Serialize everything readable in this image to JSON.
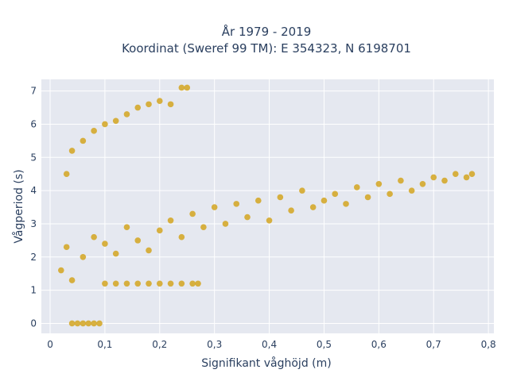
{
  "chart_data": {
    "type": "scatter",
    "title": "År 1979 - 2019",
    "subtitle": "Koordinat (Sweref 99 TM): E 354323, N 6198701",
    "xlabel": "Signifikant våghöjd (m)",
    "ylabel": "Vågperiod (s)",
    "xlim": [
      -0.016,
      0.81
    ],
    "ylim": [
      -0.3,
      7.35
    ],
    "x_ticks": [
      0,
      0.1,
      0.2,
      0.3,
      0.4,
      0.5,
      0.6,
      0.7,
      0.8
    ],
    "x_tick_labels": [
      "0",
      "0,1",
      "0,2",
      "0,3",
      "0,4",
      "0,5",
      "0,6",
      "0,7",
      "0,8"
    ],
    "y_ticks": [
      0,
      1,
      2,
      3,
      4,
      5,
      6,
      7
    ],
    "y_tick_labels": [
      "0",
      "1",
      "2",
      "3",
      "4",
      "5",
      "6",
      "7"
    ],
    "grid": true,
    "legend": "none",
    "background": "#e5e8f0",
    "marker_color": "#d4a420",
    "series": [
      {
        "points": [
          [
            0.04,
            0.0
          ],
          [
            0.05,
            0.0
          ],
          [
            0.06,
            0.0
          ],
          [
            0.07,
            0.0
          ],
          [
            0.08,
            0.0
          ],
          [
            0.09,
            0.0
          ],
          [
            0.1,
            1.2
          ],
          [
            0.12,
            1.2
          ],
          [
            0.14,
            1.2
          ],
          [
            0.16,
            1.2
          ],
          [
            0.18,
            1.2
          ],
          [
            0.2,
            1.2
          ],
          [
            0.22,
            1.2
          ],
          [
            0.24,
            1.2
          ],
          [
            0.26,
            1.2
          ],
          [
            0.27,
            1.2
          ],
          [
            0.02,
            1.6
          ],
          [
            0.03,
            2.3
          ],
          [
            0.04,
            1.3
          ],
          [
            0.06,
            2.0
          ],
          [
            0.08,
            2.6
          ],
          [
            0.1,
            2.4
          ],
          [
            0.12,
            2.1
          ],
          [
            0.14,
            2.9
          ],
          [
            0.16,
            2.5
          ],
          [
            0.18,
            2.2
          ],
          [
            0.2,
            2.8
          ],
          [
            0.22,
            3.1
          ],
          [
            0.24,
            2.6
          ],
          [
            0.26,
            3.3
          ],
          [
            0.28,
            2.9
          ],
          [
            0.3,
            3.5
          ],
          [
            0.32,
            3.0
          ],
          [
            0.34,
            3.6
          ],
          [
            0.36,
            3.2
          ],
          [
            0.38,
            3.7
          ],
          [
            0.4,
            3.1
          ],
          [
            0.42,
            3.8
          ],
          [
            0.44,
            3.4
          ],
          [
            0.46,
            4.0
          ],
          [
            0.48,
            3.5
          ],
          [
            0.5,
            3.7
          ],
          [
            0.52,
            3.9
          ],
          [
            0.54,
            3.6
          ],
          [
            0.56,
            4.1
          ],
          [
            0.58,
            3.8
          ],
          [
            0.6,
            4.2
          ],
          [
            0.62,
            3.9
          ],
          [
            0.64,
            4.3
          ],
          [
            0.66,
            4.0
          ],
          [
            0.68,
            4.2
          ],
          [
            0.7,
            4.4
          ],
          [
            0.72,
            4.3
          ],
          [
            0.74,
            4.5
          ],
          [
            0.76,
            4.4
          ],
          [
            0.77,
            4.5
          ],
          [
            0.03,
            4.5
          ],
          [
            0.04,
            5.2
          ],
          [
            0.06,
            5.5
          ],
          [
            0.08,
            5.8
          ],
          [
            0.1,
            6.0
          ],
          [
            0.12,
            6.1
          ],
          [
            0.14,
            6.3
          ],
          [
            0.16,
            6.5
          ],
          [
            0.18,
            6.6
          ],
          [
            0.2,
            6.7
          ],
          [
            0.22,
            6.6
          ],
          [
            0.24,
            7.1
          ],
          [
            0.25,
            7.1
          ]
        ]
      }
    ]
  }
}
